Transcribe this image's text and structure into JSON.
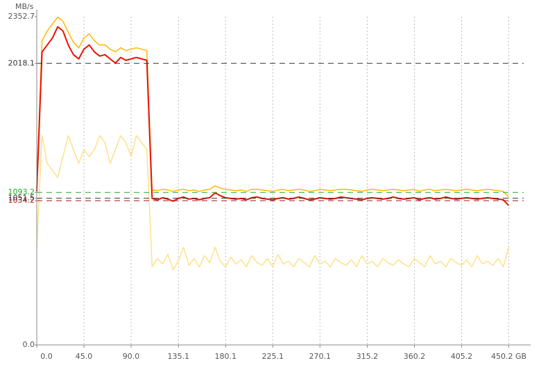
{
  "chart_data": {
    "type": "line",
    "y_label": "MB/s",
    "x": [
      0,
      5,
      10,
      15,
      20,
      25,
      30,
      35,
      40,
      45,
      50,
      55,
      60,
      65,
      70,
      75,
      80,
      85,
      90,
      95,
      100,
      105,
      110,
      115,
      120,
      125,
      130,
      135,
      140,
      145,
      150,
      155,
      160,
      165,
      170,
      175,
      180,
      185,
      190,
      195,
      200,
      205,
      210,
      215,
      220,
      225,
      230,
      235,
      240,
      245,
      250,
      255,
      260,
      265,
      270,
      275,
      280,
      285,
      290,
      295,
      300,
      305,
      310,
      315,
      320,
      325,
      330,
      335,
      340,
      345,
      350,
      355,
      360,
      365,
      370,
      375,
      380,
      385,
      390,
      395,
      400,
      405,
      410,
      415,
      420,
      425,
      430,
      435,
      440,
      445,
      450
    ],
    "series": [
      {
        "color": "#ffe08a",
        "values": [
          700,
          1500,
          1300,
          1250,
          1200,
          1350,
          1500,
          1400,
          1300,
          1400,
          1350,
          1400,
          1500,
          1450,
          1300,
          1400,
          1500,
          1450,
          1350,
          1500,
          1450,
          1400,
          560,
          620,
          580,
          650,
          540,
          600,
          700,
          570,
          620,
          560,
          640,
          590,
          700,
          600,
          560,
          630,
          580,
          610,
          560,
          640,
          590,
          570,
          620,
          560,
          650,
          580,
          600,
          560,
          620,
          590,
          560,
          640,
          580,
          600,
          560,
          620,
          590,
          570,
          610,
          560,
          640,
          580,
          600,
          560,
          620,
          590,
          570,
          610,
          580,
          560,
          620,
          590,
          560,
          640,
          580,
          600,
          560,
          620,
          590,
          570,
          610,
          560,
          640,
          580,
          600,
          570,
          620,
          560,
          700
        ]
      },
      {
        "color": "#ffb800",
        "values": [
          1150,
          2180,
          2250,
          2300,
          2350,
          2320,
          2240,
          2170,
          2130,
          2200,
          2230,
          2180,
          2150,
          2150,
          2120,
          2100,
          2130,
          2110,
          2120,
          2130,
          2120,
          2110,
          1110,
          1105,
          1115,
          1110,
          1100,
          1110,
          1115,
          1105,
          1110,
          1100,
          1110,
          1115,
          1140,
          1125,
          1115,
          1110,
          1105,
          1110,
          1100,
          1115,
          1115,
          1110,
          1105,
          1100,
          1110,
          1115,
          1105,
          1110,
          1115,
          1110,
          1100,
          1105,
          1115,
          1110,
          1105,
          1110,
          1115,
          1115,
          1110,
          1105,
          1100,
          1110,
          1115,
          1110,
          1105,
          1110,
          1115,
          1110,
          1105,
          1110,
          1115,
          1100,
          1110,
          1115,
          1105,
          1110,
          1115,
          1110,
          1105,
          1110,
          1115,
          1110,
          1105,
          1110,
          1115,
          1110,
          1105,
          1100,
          1060
        ]
      },
      {
        "color": "#e81000",
        "values": [
          1100,
          2100,
          2150,
          2200,
          2280,
          2250,
          2150,
          2080,
          2050,
          2120,
          2150,
          2100,
          2070,
          2080,
          2050,
          2020,
          2060,
          2040,
          2050,
          2060,
          2050,
          2040,
          1050,
          1040,
          1055,
          1045,
          1030,
          1050,
          1060,
          1045,
          1050,
          1040,
          1050,
          1055,
          1090,
          1070,
          1055,
          1050,
          1045,
          1050,
          1040,
          1055,
          1060,
          1050,
          1045,
          1040,
          1050,
          1055,
          1045,
          1050,
          1060,
          1050,
          1040,
          1045,
          1055,
          1050,
          1045,
          1050,
          1060,
          1055,
          1050,
          1045,
          1040,
          1050,
          1055,
          1050,
          1045,
          1050,
          1060,
          1050,
          1045,
          1050,
          1055,
          1040,
          1050,
          1055,
          1045,
          1050,
          1060,
          1050,
          1045,
          1050,
          1055,
          1050,
          1045,
          1050,
          1055,
          1050,
          1045,
          1040,
          1000
        ]
      }
    ],
    "xlim": [
      0,
      471
    ],
    "ylim": [
      0,
      2352.7
    ],
    "xticks": [
      {
        "value": 0,
        "label": "0.0"
      },
      {
        "value": 45,
        "label": "45.0"
      },
      {
        "value": 90,
        "label": "90.0"
      },
      135.1,
      180.1,
      225.1,
      270.1,
      315.2,
      360.2,
      405.2,
      {
        "value": 450.2,
        "label": "450.2 GB"
      }
    ],
    "yticks": [
      {
        "value": 0,
        "label": "0.0"
      },
      1034.2,
      1051.5,
      1093.2,
      2018.1,
      2352.7
    ],
    "dashed_lines": [
      {
        "value": 2018.1,
        "color": "#333333"
      },
      {
        "value": 1093.2,
        "color": "#22aa22"
      },
      {
        "value": 1051.5,
        "color": "#333333"
      },
      {
        "value": 1034.2,
        "color": "#aa1111"
      }
    ],
    "grid": true
  }
}
